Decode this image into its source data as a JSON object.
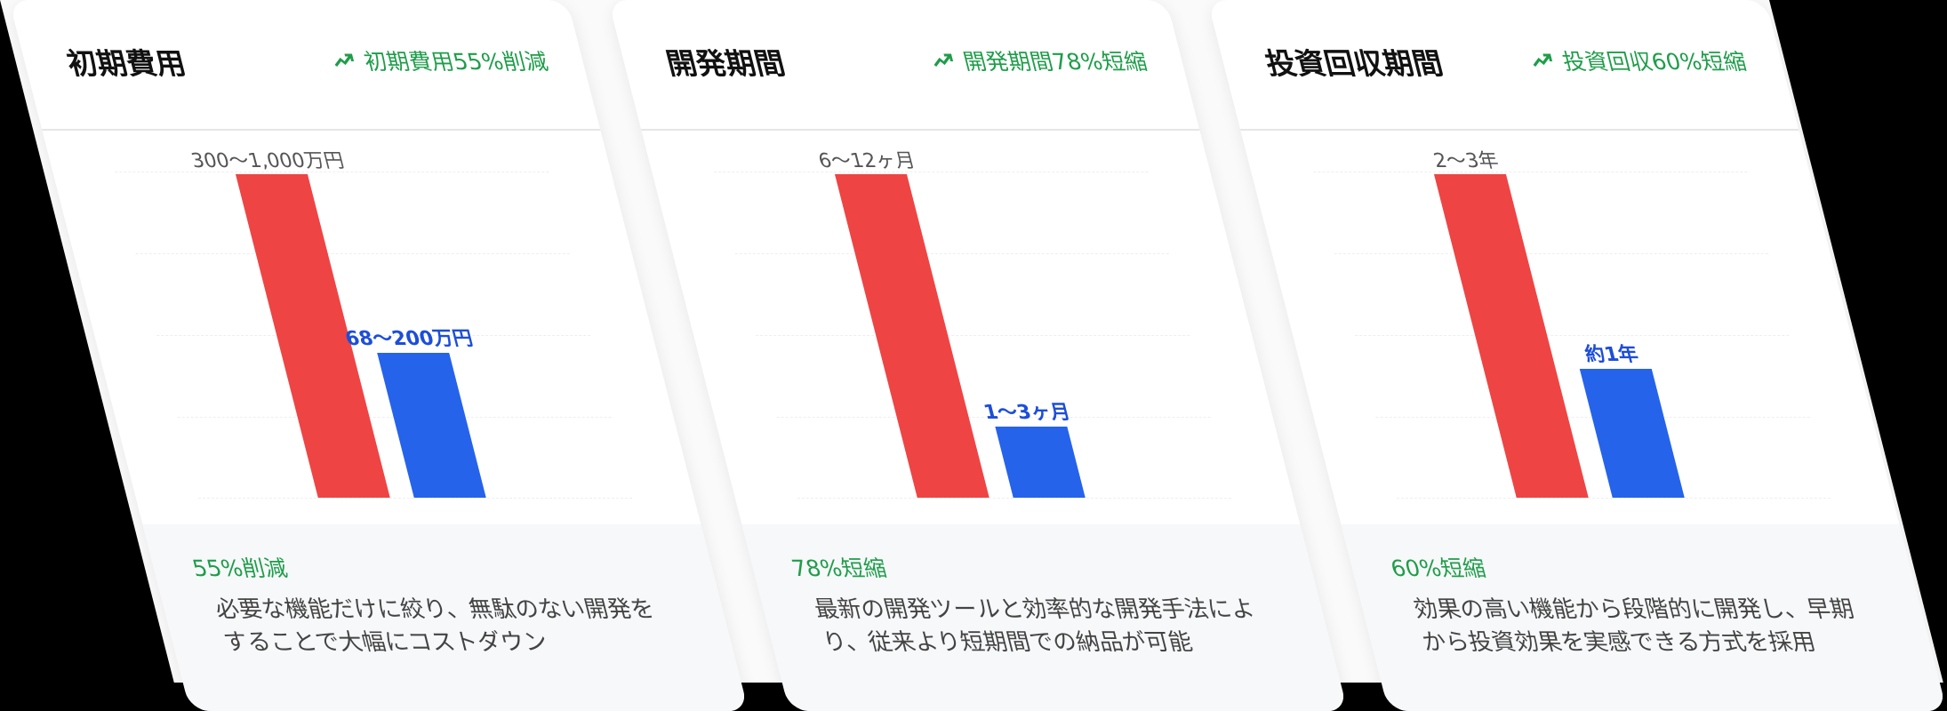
{
  "cards": [
    {
      "title": "初期費用",
      "badge": "初期費用55%削減",
      "bars": [
        {
          "label": "300〜1,000万円"
        },
        {
          "label": "68〜200万円"
        }
      ],
      "highlight": "55%削減",
      "description": "必要な機能だけに絞り、無駄のない開発をすることで大幅にコストダウン"
    },
    {
      "title": "開発期間",
      "badge": "開発期間78%短縮",
      "bars": [
        {
          "label": "6〜12ヶ月"
        },
        {
          "label": "1〜3ヶ月"
        }
      ],
      "highlight": "78%短縮",
      "description": "最新の開発ツールと効率的な開発手法により、従来より短期間での納品が可能"
    },
    {
      "title": "投資回収期間",
      "badge": "投資回収60%短縮",
      "bars": [
        {
          "label": "2〜3年"
        },
        {
          "label": "約1年"
        }
      ],
      "highlight": "60%短縮",
      "description": "効果の高い機能から段階的に開発し、早期から投資効果を実感できる方式を採用"
    }
  ]
}
